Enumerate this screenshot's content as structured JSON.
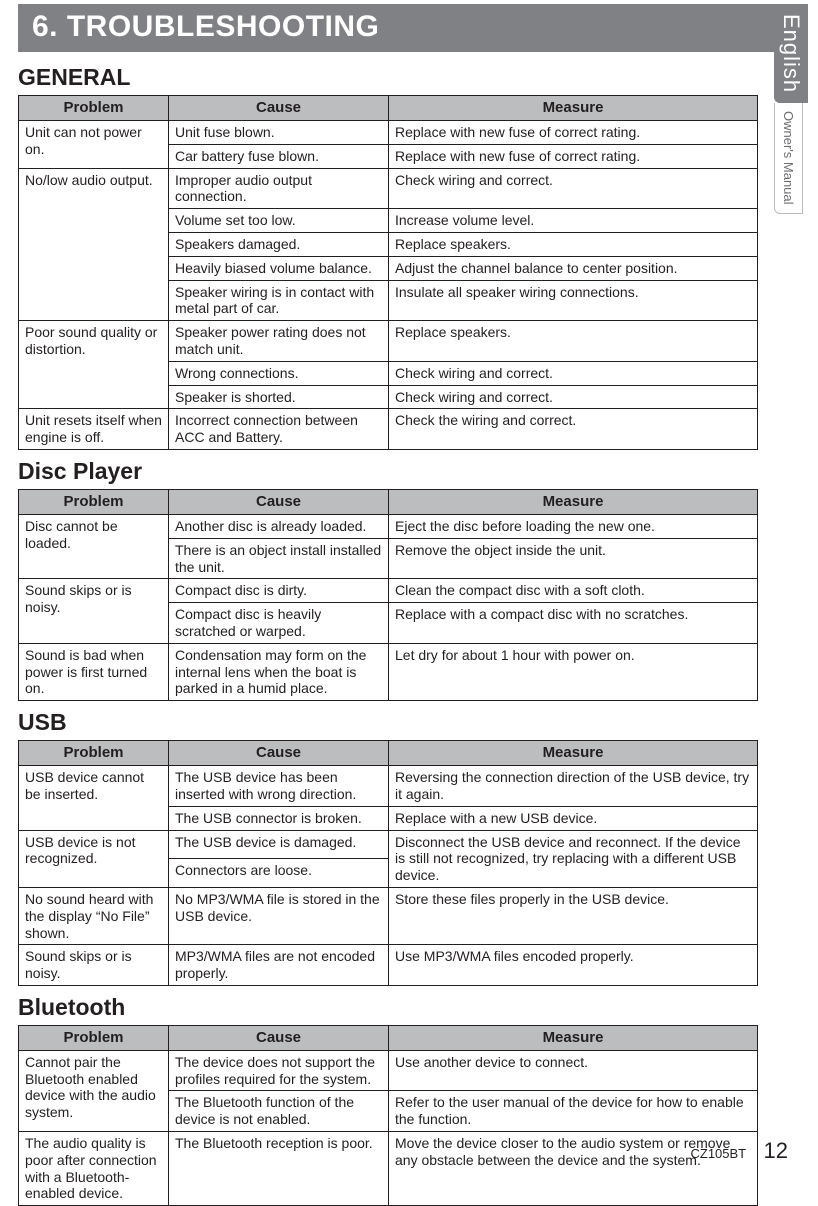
{
  "banner": "6.  TROUBLESHOOTING",
  "sidetab": {
    "english": "English",
    "owners": "Owner's Manual"
  },
  "footer": {
    "model": "CZ105BT",
    "page": "12"
  },
  "sections": {
    "general": {
      "title": "GENERAL",
      "headers": {
        "problem": "Problem",
        "cause": "Cause",
        "measure": "Measure"
      },
      "rows": [
        {
          "problem": "Unit can not power on.",
          "cause": "Unit fuse blown.",
          "measure": "Replace with new fuse of correct rating.",
          "rowspan": 2
        },
        {
          "problem": "",
          "cause": "Car battery fuse blown.",
          "measure": "Replace with new fuse of correct rating."
        },
        {
          "problem": "No/low audio output.",
          "cause": "Improper audio output connection.",
          "measure": "Check wiring and correct.",
          "rowspan": 5
        },
        {
          "problem": "",
          "cause": "Volume set too low.",
          "measure": "Increase volume level."
        },
        {
          "problem": "",
          "cause": "Speakers damaged.",
          "measure": "Replace speakers."
        },
        {
          "problem": "",
          "cause": "Heavily biased volume balance.",
          "measure": "Adjust the channel balance to center position."
        },
        {
          "problem": "",
          "cause": "Speaker wiring is in contact with metal part of car.",
          "measure": "Insulate all speaker wiring connections."
        },
        {
          "problem": "Poor sound quality or distortion.",
          "cause": "Speaker power rating does not match unit.",
          "measure": "Replace speakers.",
          "rowspan": 3
        },
        {
          "problem": "",
          "cause": "Wrong connections.",
          "measure": "Check wiring and correct."
        },
        {
          "problem": "",
          "cause": "Speaker is shorted.",
          "measure": "Check wiring and correct."
        },
        {
          "problem": "Unit resets itself when engine is off.",
          "cause": "Incorrect connection between ACC and Battery.",
          "measure": "Check the wiring and correct.",
          "rowspan": 1
        }
      ]
    },
    "disc": {
      "title": "Disc Player",
      "headers": {
        "problem": "Problem",
        "cause": "Cause",
        "measure": "Measure"
      },
      "rows": [
        {
          "problem": "Disc cannot be loaded.",
          "cause": "Another disc is already loaded.",
          "measure": "Eject the disc before loading the new one.",
          "rowspan": 2
        },
        {
          "problem": "",
          "cause": "There is an object install installed the unit.",
          "measure": "Remove the object inside the unit."
        },
        {
          "problem": "Sound skips or is noisy.",
          "cause": "Compact disc is dirty.",
          "measure": "Clean the compact disc with a soft cloth.",
          "rowspan": 2
        },
        {
          "problem": "",
          "cause": "Compact disc is heavily scratched or warped.",
          "measure": "Replace with a compact disc with no scratches."
        },
        {
          "problem": "Sound is bad when power is first turned on.",
          "cause": "Condensation may form on the internal lens when the boat is parked in a humid place.",
          "measure": "Let dry for about 1 hour with power on.",
          "rowspan": 1
        }
      ]
    },
    "usb": {
      "title": "USB",
      "headers": {
        "problem": "Problem",
        "cause": "Cause",
        "measure": "Measure"
      },
      "rows": [
        {
          "problem": "USB device cannot be inserted.",
          "cause": "The USB device has been inserted with wrong direction.",
          "measure": "Reversing the connection direction of the USB device, try it again.",
          "rowspan": 2
        },
        {
          "problem": "",
          "cause": "The USB connector is broken.",
          "measure": "Replace with a new USB device."
        },
        {
          "problem": "USB device is not recognized.",
          "cause": "The USB device is damaged.",
          "measure": "Disconnect the USB device and reconnect. If the device is still not recognized, try replacing with a different USB device.",
          "rowspan": 2,
          "measure_rowspan": 2
        },
        {
          "problem": "",
          "cause": "Connectors are loose.",
          "measure": ""
        },
        {
          "problem": "No sound heard with the display “No File” shown.",
          "cause": "No MP3/WMA file is stored in the USB device.",
          "measure": "Store these files properly in the USB device.",
          "rowspan": 1
        },
        {
          "problem": "Sound skips or is noisy.",
          "cause": "MP3/WMA files are not encoded properly.",
          "measure": "Use MP3/WMA files encoded properly.",
          "rowspan": 1
        }
      ]
    },
    "bluetooth": {
      "title": "Bluetooth",
      "headers": {
        "problem": "Problem",
        "cause": "Cause",
        "measure": "Measure"
      },
      "rows": [
        {
          "problem": "Cannot pair the Bluetooth enabled device with the audio system.",
          "cause": "The device does not support the profiles required for the system.",
          "measure": "Use another device to connect.",
          "rowspan": 2
        },
        {
          "problem": "",
          "cause": "The Bluetooth function of the device is not enabled.",
          "measure": "Refer to the user manual of the device for how to enable the function."
        },
        {
          "problem": "The audio quality is poor after connection with a Bluetooth-enabled device.",
          "cause": "The Bluetooth reception is poor.",
          "measure": "Move the device closer to the audio system or remove any obstacle between the device and the system.",
          "rowspan": 1
        }
      ]
    }
  }
}
